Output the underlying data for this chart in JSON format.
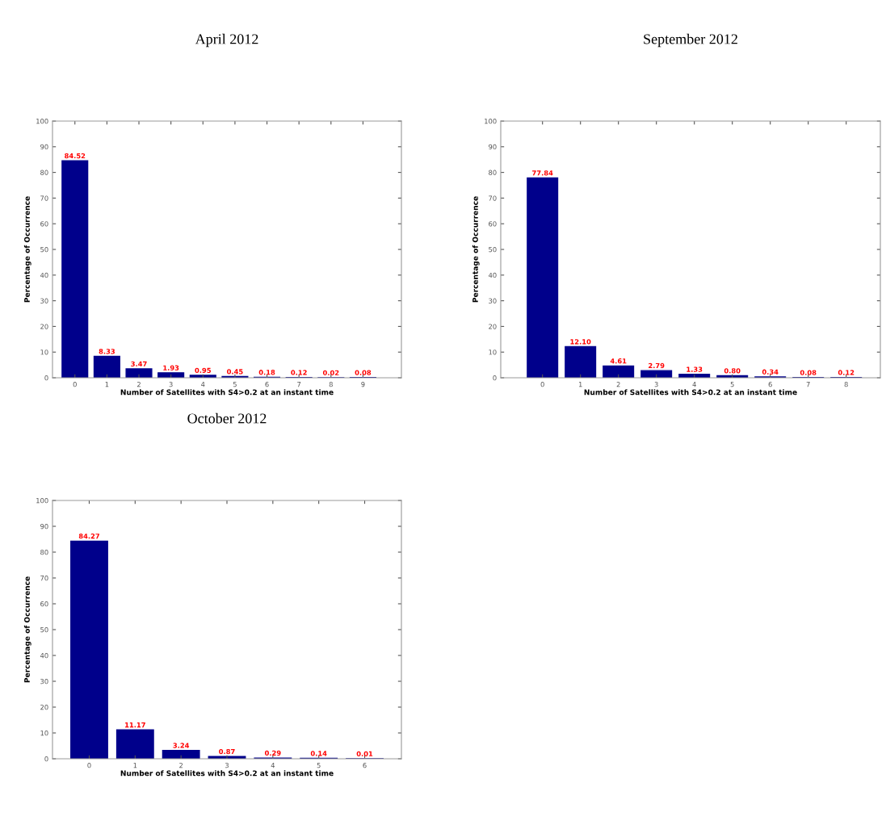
{
  "chart_data": [
    {
      "type": "bar",
      "title": "April 2012",
      "xlabel": "Number of Satellites with S4>0.2 at an instant time",
      "ylabel": "Percentage of Occurrence",
      "x": [
        0,
        1,
        2,
        3,
        4,
        5,
        6,
        7,
        8,
        9
      ],
      "values": [
        84.52,
        8.33,
        3.47,
        1.93,
        0.95,
        0.45,
        0.18,
        0.12,
        0.02,
        0.08
      ],
      "value_labels": [
        "84.52",
        "8.33",
        "3.47",
        "1.93",
        "0.95",
        "0.45",
        "0.18",
        "0.12",
        "0.02",
        "0.08"
      ],
      "color": "#00008b",
      "xlim": [
        -0.7,
        10.2
      ],
      "xticks": [
        0,
        1,
        2,
        3,
        4,
        5,
        6,
        7,
        8,
        9
      ],
      "ylim": [
        0,
        100
      ],
      "yticks": [
        0,
        10,
        20,
        30,
        40,
        50,
        60,
        70,
        80,
        90,
        100
      ],
      "grid": false
    },
    {
      "type": "bar",
      "title": "September 2012",
      "xlabel": "Number of Satellites with S4>0.2 at an instant time",
      "ylabel": "Percentage of Occurrence",
      "x": [
        0,
        1,
        2,
        3,
        4,
        5,
        6,
        7,
        8
      ],
      "values": [
        77.84,
        12.1,
        4.61,
        2.79,
        1.33,
        0.8,
        0.34,
        0.08,
        0.12
      ],
      "value_labels": [
        "77.84",
        "12.10",
        "4.61",
        "2.79",
        "1.33",
        "0.80",
        "0.34",
        "0.08",
        "0.12"
      ],
      "color": "#00008b",
      "xlim": [
        -1.1,
        8.9
      ],
      "xticks": [
        0,
        1,
        2,
        3,
        4,
        5,
        6,
        7,
        8
      ],
      "ylim": [
        0,
        100
      ],
      "yticks": [
        0,
        10,
        20,
        30,
        40,
        50,
        60,
        70,
        80,
        90,
        100
      ],
      "grid": false
    },
    {
      "type": "bar",
      "title": "October 2012",
      "xlabel": "Number of Satellites with S4>0.2 at an instant time",
      "ylabel": "Percentage of Occurrence",
      "x": [
        0,
        1,
        2,
        3,
        4,
        5,
        6
      ],
      "values": [
        84.27,
        11.17,
        3.24,
        0.87,
        0.29,
        0.14,
        0.01
      ],
      "value_labels": [
        "84.27",
        "11.17",
        "3.24",
        "0.87",
        "0.29",
        "0.14",
        "0.01"
      ],
      "color": "#00008b",
      "xlim": [
        -0.8,
        6.8
      ],
      "xticks": [
        0,
        1,
        2,
        3,
        4,
        5,
        6
      ],
      "ylim": [
        0,
        100
      ],
      "yticks": [
        0,
        10,
        20,
        30,
        40,
        50,
        60,
        70,
        80,
        90,
        100
      ],
      "grid": false
    }
  ]
}
